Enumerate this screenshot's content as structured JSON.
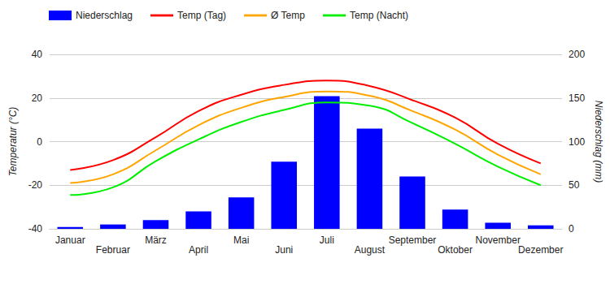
{
  "chart_data": {
    "type": "bar",
    "categories": [
      "Januar",
      "Februar",
      "März",
      "April",
      "Mai",
      "Juni",
      "Juli",
      "August",
      "September",
      "Oktober",
      "November",
      "Dezember"
    ],
    "series": [
      {
        "name": "Niederschlag",
        "type": "bar",
        "axis": "y2",
        "color": "#0000ff",
        "values": [
          2,
          5,
          10,
          20,
          36,
          77,
          152,
          115,
          60,
          22,
          7,
          4
        ]
      },
      {
        "name": "Temp (Tag)",
        "type": "line",
        "color": "#ff0000",
        "values": [
          -13,
          -8.5,
          2,
          14,
          21.5,
          26,
          28,
          25.5,
          19,
          11,
          -1,
          -10
        ]
      },
      {
        "name": "Ø Temp",
        "type": "line",
        "color": "#ffa500",
        "values": [
          -19,
          -15,
          -4,
          7.5,
          15.5,
          20.5,
          23,
          21,
          14,
          5.5,
          -6,
          -15
        ]
      },
      {
        "name": "Temp (Nacht)",
        "type": "line",
        "color": "#00ee00",
        "values": [
          -24.5,
          -21,
          -9,
          1,
          9,
          14.5,
          18,
          16.5,
          8.5,
          -1,
          -11.5,
          -20
        ]
      }
    ],
    "y_label": "Temperatur (°C)",
    "y2_label": "Niederschlag (mm)",
    "ylim": [
      -40,
      40
    ],
    "yticks": [
      -40,
      -20,
      0,
      20,
      40
    ],
    "y2lim": [
      0,
      200
    ],
    "y2ticks": [
      0,
      50,
      100,
      150,
      200
    ],
    "grid": true,
    "legend": "top-left"
  }
}
